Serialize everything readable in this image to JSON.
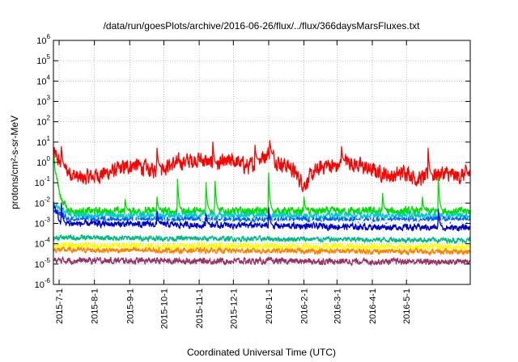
{
  "chart_data": {
    "type": "line",
    "title": "/data/run/goesPlots/archive/2016-06-26/flux/../flux/366daysMarsFluxes.txt",
    "xlabel": "Coordinated Universal Time (UTC)",
    "ylabel": "protons/cm²-s-sr-MeV",
    "yscale": "log",
    "ylim": [
      1e-06,
      1000000.0
    ],
    "xlim": [
      "2015-06-26",
      "2016-06-26"
    ],
    "y_ticks": [
      {
        "base": "10",
        "exp": "-6",
        "value": 1e-06
      },
      {
        "base": "10",
        "exp": "-5",
        "value": 1e-05
      },
      {
        "base": "10",
        "exp": "-4",
        "value": 0.0001
      },
      {
        "base": "10",
        "exp": "-3",
        "value": 0.001
      },
      {
        "base": "10",
        "exp": "-2",
        "value": 0.01
      },
      {
        "base": "10",
        "exp": "-1",
        "value": 0.1
      },
      {
        "base": "10",
        "exp": "0",
        "value": 1
      },
      {
        "base": "10",
        "exp": "1",
        "value": 10
      },
      {
        "base": "10",
        "exp": "2",
        "value": 100
      },
      {
        "base": "10",
        "exp": "3",
        "value": 1000
      },
      {
        "base": "10",
        "exp": "4",
        "value": 10000
      },
      {
        "base": "10",
        "exp": "5",
        "value": 100000
      },
      {
        "base": "10",
        "exp": "6",
        "value": 1000000
      }
    ],
    "x_ticks": [
      {
        "label": "2015-7-1",
        "date": "2015-07-01"
      },
      {
        "label": "2015-8-1",
        "date": "2015-08-01"
      },
      {
        "label": "2015-9-1",
        "date": "2015-09-01"
      },
      {
        "label": "2015-10-1",
        "date": "2015-10-01"
      },
      {
        "label": "2015-11-1",
        "date": "2015-11-01"
      },
      {
        "label": "2015-12-1",
        "date": "2015-12-01"
      },
      {
        "label": "2016-1-1",
        "date": "2016-01-01"
      },
      {
        "label": "2016-2-1",
        "date": "2016-02-01"
      },
      {
        "label": "2016-3-1",
        "date": "2016-03-01"
      },
      {
        "label": "2016-4-1",
        "date": "2016-04-01"
      },
      {
        "label": "2016-5-1",
        "date": "2016-05-01"
      }
    ],
    "grid": true,
    "legend": "none",
    "series": [
      {
        "color": "#ff0000",
        "points": [
          [
            "2015-06-26",
            3
          ],
          [
            "2015-07-05",
            0.5
          ],
          [
            "2015-07-20",
            0.15
          ],
          [
            "2015-08-05",
            0.25
          ],
          [
            "2015-08-20",
            0.4
          ],
          [
            "2015-09-05",
            0.8
          ],
          [
            "2015-09-20",
            0.4
          ],
          [
            "2015-10-01",
            0.6
          ],
          [
            "2015-10-15",
            1.0
          ],
          [
            "2015-11-01",
            1.5
          ],
          [
            "2015-11-15",
            0.7
          ],
          [
            "2015-12-01",
            1.2
          ],
          [
            "2015-12-15",
            0.6
          ],
          [
            "2016-01-01",
            3
          ],
          [
            "2016-01-10",
            1.0
          ],
          [
            "2016-01-20",
            0.6
          ],
          [
            "2016-02-01",
            0.08
          ],
          [
            "2016-02-10",
            0.3
          ],
          [
            "2016-02-20",
            0.8
          ],
          [
            "2016-03-01",
            0.6
          ],
          [
            "2016-03-10",
            1.2
          ],
          [
            "2016-03-20",
            0.7
          ],
          [
            "2016-04-01",
            0.4
          ],
          [
            "2016-04-10",
            0.3
          ],
          [
            "2016-04-20",
            0.2
          ],
          [
            "2016-05-01",
            0.4
          ],
          [
            "2016-05-10",
            0.15
          ],
          [
            "2016-05-20",
            0.2
          ],
          [
            "2016-06-01",
            0.3
          ],
          [
            "2016-06-15",
            0.2
          ],
          [
            "2016-06-26",
            0.3
          ]
        ],
        "noise": 0.3,
        "spikes": [
          [
            "2015-07-03",
            6
          ],
          [
            "2015-09-25",
            5
          ],
          [
            "2015-11-13",
            10
          ],
          [
            "2015-12-20",
            7
          ],
          [
            "2016-01-02",
            12
          ],
          [
            "2016-03-05",
            6
          ],
          [
            "2016-05-20",
            5
          ]
        ]
      },
      {
        "color": "#00dd00",
        "points": [
          [
            "2015-06-26",
            2
          ],
          [
            "2015-07-02",
            0.02
          ],
          [
            "2015-07-10",
            0.004
          ],
          [
            "2015-12-31",
            0.004
          ],
          [
            "2016-06-26",
            0.004
          ]
        ],
        "noise": 0.15,
        "spikes": [
          [
            "2015-08-28",
            0.015
          ],
          [
            "2015-09-25",
            0.02
          ],
          [
            "2015-10-13",
            0.15
          ],
          [
            "2015-11-07",
            0.1
          ],
          [
            "2015-11-15",
            0.12
          ],
          [
            "2016-01-01",
            0.3
          ],
          [
            "2016-02-01",
            0.02
          ],
          [
            "2016-04-10",
            0.03
          ],
          [
            "2016-05-15",
            0.02
          ],
          [
            "2016-05-29",
            0.2
          ]
        ]
      },
      {
        "color": "#00cccc",
        "points": [
          [
            "2015-06-26",
            0.01
          ],
          [
            "2015-07-10",
            0.0025
          ],
          [
            "2016-06-26",
            0.0025
          ]
        ],
        "noise": 0.12,
        "spikes": []
      },
      {
        "color": "#0060ff",
        "points": [
          [
            "2015-06-26",
            0.005
          ],
          [
            "2015-07-10",
            0.0015
          ],
          [
            "2016-06-26",
            0.0015
          ]
        ],
        "noise": 0.12,
        "spikes": []
      },
      {
        "color": "#ffffff",
        "points": [
          [
            "2015-06-26",
            0.001
          ],
          [
            "2015-07-10",
            0.0012
          ],
          [
            "2016-06-26",
            0.0012
          ]
        ],
        "noise": 0.08,
        "spikes": []
      },
      {
        "color": "#0000cc",
        "points": [
          [
            "2015-06-26",
            0.01
          ],
          [
            "2015-07-02",
            0.001
          ],
          [
            "2016-06-26",
            0.0006
          ]
        ],
        "noise": 0.12,
        "spikes": [
          [
            "2015-07-03",
            0.01
          ],
          [
            "2015-09-25",
            0.004
          ],
          [
            "2015-11-07",
            0.003
          ],
          [
            "2016-01-01",
            0.006
          ],
          [
            "2016-05-29",
            0.005
          ]
        ]
      },
      {
        "color": "#00bb88",
        "points": [
          [
            "2015-06-26",
            0.0002
          ],
          [
            "2016-06-26",
            0.00015
          ]
        ],
        "noise": 0.1,
        "spikes": []
      },
      {
        "color": "#ffff00",
        "points": [
          [
            "2015-06-26",
            8e-05
          ],
          [
            "2016-06-26",
            7e-05
          ]
        ],
        "noise": 0.12,
        "spikes": []
      },
      {
        "color": "#ff8000",
        "points": [
          [
            "2015-06-26",
            5e-05
          ],
          [
            "2016-06-26",
            4e-05
          ]
        ],
        "noise": 0.1,
        "spikes": []
      },
      {
        "color": "#993366",
        "points": [
          [
            "2015-06-26",
            1.5e-05
          ],
          [
            "2016-06-26",
            1.3e-05
          ]
        ],
        "noise": 0.12,
        "spikes": [
          [
            "2015-07-28",
            2e-06
          ],
          [
            "2016-04-15",
            2.5e-06
          ],
          [
            "2016-03-20",
            3e-06
          ]
        ]
      }
    ]
  }
}
